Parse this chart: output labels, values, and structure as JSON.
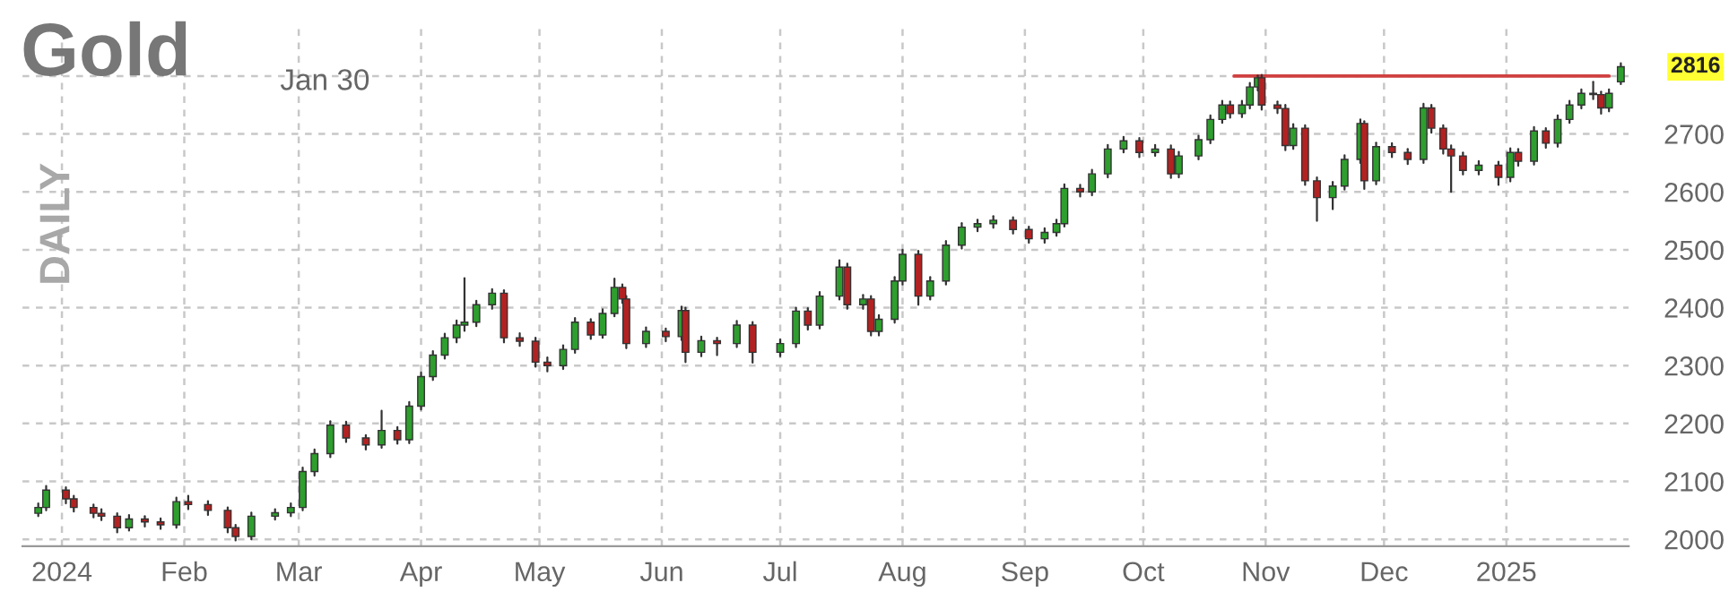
{
  "chart_data": {
    "type": "candlestick",
    "title": "Gold",
    "subtitle": "Jan 30",
    "annotations": [
      "DAILY",
      {
        "text": "2816",
        "x": "2025-01-30",
        "y": 2816
      }
    ],
    "x": [
      "2023-12-26",
      "2023-12-28",
      "2024-01-02",
      "2024-01-04",
      "2024-01-09",
      "2024-01-11",
      "2024-01-15",
      "2024-01-18",
      "2024-01-22",
      "2024-01-26",
      "2024-01-30",
      "2024-02-02",
      "2024-02-07",
      "2024-02-12",
      "2024-02-14",
      "2024-02-18",
      "2024-02-24",
      "2024-02-28",
      "2024-03-02",
      "2024-03-05",
      "2024-03-09",
      "2024-03-13",
      "2024-03-18",
      "2024-03-22",
      "2024-03-26",
      "2024-03-29",
      "2024-04-01",
      "2024-04-04",
      "2024-04-07",
      "2024-04-10",
      "2024-04-12",
      "2024-04-15",
      "2024-04-19",
      "2024-04-22",
      "2024-04-26",
      "2024-04-30",
      "2024-05-03",
      "2024-05-07",
      "2024-05-10",
      "2024-05-14",
      "2024-05-17",
      "2024-05-20",
      "2024-05-22",
      "2024-05-23",
      "2024-05-28",
      "2024-06-02",
      "2024-06-06",
      "2024-06-07",
      "2024-06-11",
      "2024-06-15",
      "2024-06-20",
      "2024-06-24",
      "2024-07-01",
      "2024-07-05",
      "2024-07-08",
      "2024-07-11",
      "2024-07-16",
      "2024-07-18",
      "2024-07-22",
      "2024-07-24",
      "2024-07-26",
      "2024-07-30",
      "2024-08-01",
      "2024-08-05",
      "2024-08-08",
      "2024-08-12",
      "2024-08-16",
      "2024-08-20",
      "2024-08-24",
      "2024-08-29",
      "2024-09-02",
      "2024-09-06",
      "2024-09-09",
      "2024-09-11",
      "2024-09-15",
      "2024-09-18",
      "2024-09-22",
      "2024-09-26",
      "2024-09-30",
      "2024-10-04",
      "2024-10-08",
      "2024-10-10",
      "2024-10-15",
      "2024-10-18",
      "2024-10-21",
      "2024-10-23",
      "2024-10-26",
      "2024-10-28",
      "2024-10-30",
      "2024-10-31",
      "2024-11-04",
      "2024-11-06",
      "2024-11-08",
      "2024-11-11",
      "2024-11-14",
      "2024-11-18",
      "2024-11-21",
      "2024-11-25",
      "2024-11-26",
      "2024-11-29",
      "2024-12-03",
      "2024-12-07",
      "2024-12-11",
      "2024-12-13",
      "2024-12-16",
      "2024-12-18",
      "2024-12-21",
      "2024-12-25",
      "2024-12-30",
      "2025-01-02",
      "2025-01-04",
      "2025-01-08",
      "2025-01-11",
      "2025-01-14",
      "2025-01-17",
      "2025-01-20",
      "2025-01-23",
      "2025-01-25",
      "2025-01-27",
      "2025-01-30"
    ],
    "ohlc": [
      [
        2045,
        2062,
        2040,
        2055
      ],
      [
        2055,
        2092,
        2050,
        2085
      ],
      [
        2085,
        2090,
        2062,
        2070
      ],
      [
        2070,
        2075,
        2048,
        2055
      ],
      [
        2055,
        2060,
        2038,
        2045
      ],
      [
        2045,
        2052,
        2033,
        2040
      ],
      [
        2040,
        2045,
        2012,
        2020
      ],
      [
        2020,
        2042,
        2015,
        2035
      ],
      [
        2035,
        2040,
        2022,
        2030
      ],
      [
        2030,
        2036,
        2018,
        2025
      ],
      [
        2025,
        2072,
        2020,
        2065
      ],
      [
        2065,
        2075,
        2052,
        2060
      ],
      [
        2060,
        2066,
        2042,
        2050
      ],
      [
        2050,
        2055,
        2012,
        2020
      ],
      [
        2020,
        2025,
        1998,
        2005
      ],
      [
        2005,
        2046,
        2000,
        2040
      ],
      [
        2040,
        2052,
        2034,
        2046
      ],
      [
        2046,
        2062,
        2040,
        2055
      ],
      [
        2055,
        2124,
        2050,
        2117
      ],
      [
        2117,
        2155,
        2110,
        2148
      ],
      [
        2148,
        2204,
        2142,
        2197
      ],
      [
        2197,
        2203,
        2168,
        2175
      ],
      [
        2175,
        2180,
        2155,
        2163
      ],
      [
        2163,
        2222,
        2158,
        2188
      ],
      [
        2188,
        2194,
        2165,
        2172
      ],
      [
        2172,
        2237,
        2166,
        2230
      ],
      [
        2230,
        2288,
        2224,
        2281
      ],
      [
        2281,
        2325,
        2275,
        2318
      ],
      [
        2318,
        2355,
        2312,
        2348
      ],
      [
        2348,
        2378,
        2340,
        2370
      ],
      [
        2370,
        2451,
        2360,
        2375
      ],
      [
        2375,
        2412,
        2368,
        2405
      ],
      [
        2405,
        2432,
        2398,
        2425
      ],
      [
        2425,
        2430,
        2340,
        2348
      ],
      [
        2348,
        2356,
        2334,
        2342
      ],
      [
        2342,
        2348,
        2298,
        2306
      ],
      [
        2306,
        2314,
        2290,
        2300
      ],
      [
        2300,
        2335,
        2294,
        2328
      ],
      [
        2328,
        2382,
        2322,
        2375
      ],
      [
        2375,
        2380,
        2346,
        2353
      ],
      [
        2353,
        2397,
        2348,
        2390
      ],
      [
        2390,
        2450,
        2385,
        2435
      ],
      [
        2435,
        2440,
        2408,
        2415
      ],
      [
        2415,
        2420,
        2330,
        2338
      ],
      [
        2338,
        2366,
        2332,
        2359
      ],
      [
        2359,
        2364,
        2342,
        2350
      ],
      [
        2350,
        2402,
        2344,
        2395
      ],
      [
        2395,
        2400,
        2306,
        2323
      ],
      [
        2323,
        2350,
        2316,
        2343
      ],
      [
        2343,
        2348,
        2318,
        2338
      ],
      [
        2338,
        2377,
        2332,
        2370
      ],
      [
        2370,
        2375,
        2305,
        2323
      ],
      [
        2323,
        2345,
        2316,
        2338
      ],
      [
        2338,
        2400,
        2332,
        2394
      ],
      [
        2394,
        2399,
        2362,
        2370
      ],
      [
        2370,
        2427,
        2364,
        2420
      ],
      [
        2420,
        2482,
        2414,
        2470
      ],
      [
        2470,
        2476,
        2398,
        2405
      ],
      [
        2405,
        2422,
        2398,
        2415
      ],
      [
        2415,
        2420,
        2352,
        2359
      ],
      [
        2359,
        2387,
        2352,
        2380
      ],
      [
        2380,
        2453,
        2374,
        2446
      ],
      [
        2446,
        2500,
        2440,
        2492
      ],
      [
        2492,
        2498,
        2405,
        2420
      ],
      [
        2420,
        2453,
        2414,
        2446
      ],
      [
        2446,
        2515,
        2440,
        2508
      ],
      [
        2508,
        2546,
        2502,
        2539
      ],
      [
        2539,
        2552,
        2532,
        2545
      ],
      [
        2545,
        2558,
        2538,
        2551
      ],
      [
        2551,
        2556,
        2528,
        2535
      ],
      [
        2535,
        2540,
        2512,
        2519
      ],
      [
        2519,
        2537,
        2512,
        2530
      ],
      [
        2530,
        2552,
        2524,
        2545
      ],
      [
        2545,
        2613,
        2540,
        2606
      ],
      [
        2606,
        2612,
        2592,
        2600
      ],
      [
        2600,
        2638,
        2594,
        2631
      ],
      [
        2631,
        2681,
        2625,
        2674
      ],
      [
        2674,
        2695,
        2668,
        2688
      ],
      [
        2688,
        2693,
        2660,
        2668
      ],
      [
        2668,
        2681,
        2662,
        2674
      ],
      [
        2674,
        2680,
        2624,
        2631
      ],
      [
        2631,
        2669,
        2625,
        2662
      ],
      [
        2662,
        2697,
        2656,
        2690
      ],
      [
        2690,
        2732,
        2684,
        2725
      ],
      [
        2725,
        2757,
        2719,
        2750
      ],
      [
        2750,
        2756,
        2728,
        2735
      ],
      [
        2735,
        2757,
        2729,
        2750
      ],
      [
        2750,
        2788,
        2744,
        2781
      ],
      [
        2781,
        2801,
        2775,
        2797
      ],
      [
        2797,
        2802,
        2742,
        2750
      ],
      [
        2750,
        2756,
        2736,
        2744
      ],
      [
        2744,
        2750,
        2672,
        2680
      ],
      [
        2680,
        2717,
        2674,
        2710
      ],
      [
        2710,
        2715,
        2612,
        2619
      ],
      [
        2619,
        2625,
        2550,
        2590
      ],
      [
        2590,
        2617,
        2570,
        2610
      ],
      [
        2610,
        2663,
        2604,
        2656
      ],
      [
        2656,
        2725,
        2650,
        2718
      ],
      [
        2718,
        2722,
        2605,
        2619
      ],
      [
        2619,
        2685,
        2613,
        2678
      ],
      [
        2678,
        2684,
        2660,
        2668
      ],
      [
        2668,
        2674,
        2648,
        2656
      ],
      [
        2656,
        2752,
        2650,
        2745
      ],
      [
        2745,
        2750,
        2702,
        2710
      ],
      [
        2710,
        2715,
        2666,
        2674
      ],
      [
        2674,
        2680,
        2600,
        2662
      ],
      [
        2662,
        2668,
        2630,
        2637
      ],
      [
        2637,
        2653,
        2630,
        2646
      ],
      [
        2646,
        2652,
        2612,
        2625
      ],
      [
        2625,
        2675,
        2618,
        2668
      ],
      [
        2668,
        2674,
        2645,
        2653
      ],
      [
        2653,
        2712,
        2647,
        2705
      ],
      [
        2705,
        2710,
        2676,
        2684
      ],
      [
        2684,
        2732,
        2678,
        2725
      ],
      [
        2725,
        2757,
        2719,
        2750
      ],
      [
        2750,
        2777,
        2744,
        2770
      ],
      [
        2770,
        2790,
        2760,
        2768
      ],
      [
        2768,
        2773,
        2735,
        2745
      ],
      [
        2745,
        2777,
        2739,
        2770
      ],
      [
        2790,
        2822,
        2786,
        2816
      ]
    ],
    "colors": [
      "#2e9e2e",
      "#2e9e2e",
      "#b22222",
      "#b22222",
      "#b22222",
      "#b22222",
      "#b22222",
      "#2e9e2e",
      "#b22222",
      "#b22222",
      "#2e9e2e",
      "#b22222",
      "#b22222",
      "#b22222",
      "#b22222",
      "#2e9e2e",
      "#2e9e2e",
      "#2e9e2e",
      "#2e9e2e",
      "#2e9e2e",
      "#2e9e2e",
      "#b22222",
      "#b22222",
      "#2e9e2e",
      "#b22222",
      "#2e9e2e",
      "#2e9e2e",
      "#2e9e2e",
      "#2e9e2e",
      "#2e9e2e",
      "#2e9e2e",
      "#2e9e2e",
      "#2e9e2e",
      "#b22222",
      "#b22222",
      "#b22222",
      "#b22222",
      "#2e9e2e",
      "#2e9e2e",
      "#b22222",
      "#2e9e2e",
      "#2e9e2e",
      "#b22222",
      "#b22222",
      "#2e9e2e",
      "#b22222",
      "#2e9e2e",
      "#b22222",
      "#2e9e2e",
      "#b22222",
      "#2e9e2e",
      "#b22222",
      "#2e9e2e",
      "#2e9e2e",
      "#b22222",
      "#2e9e2e",
      "#2e9e2e",
      "#b22222",
      "#2e9e2e",
      "#b22222",
      "#2e9e2e",
      "#2e9e2e",
      "#2e9e2e",
      "#b22222",
      "#2e9e2e",
      "#2e9e2e",
      "#2e9e2e",
      "#2e9e2e",
      "#2e9e2e",
      "#b22222",
      "#b22222",
      "#2e9e2e",
      "#2e9e2e",
      "#2e9e2e",
      "#b22222",
      "#2e9e2e",
      "#2e9e2e",
      "#2e9e2e",
      "#b22222",
      "#2e9e2e",
      "#b22222",
      "#2e9e2e",
      "#2e9e2e",
      "#2e9e2e",
      "#2e9e2e",
      "#b22222",
      "#2e9e2e",
      "#2e9e2e",
      "#2e9e2e",
      "#b22222",
      "#b22222",
      "#b22222",
      "#2e9e2e",
      "#b22222",
      "#b22222",
      "#2e9e2e",
      "#2e9e2e",
      "#2e9e2e",
      "#b22222",
      "#2e9e2e",
      "#b22222",
      "#b22222",
      "#2e9e2e",
      "#b22222",
      "#b22222",
      "#b22222",
      "#b22222",
      "#2e9e2e",
      "#b22222",
      "#2e9e2e",
      "#b22222",
      "#2e9e2e",
      "#b22222",
      "#2e9e2e",
      "#2e9e2e",
      "#2e9e2e",
      "#b22222",
      "#b22222",
      "#2e9e2e",
      "#2e9e2e"
    ],
    "series": [
      {
        "type": "line",
        "color": "#d04040",
        "x": [
          "2024-10-24",
          "2025-01-27"
        ],
        "values": [
          2800,
          2800
        ]
      }
    ],
    "xlim": [
      "2023-12-22",
      "2025-02-01"
    ],
    "xticks": [
      {
        "value": "2024-01-01",
        "label": "2024"
      },
      {
        "value": "2024-02-01",
        "label": "Feb"
      },
      {
        "value": "2024-03-01",
        "label": "Mar"
      },
      {
        "value": "2024-04-01",
        "label": "Apr"
      },
      {
        "value": "2024-05-01",
        "label": "May"
      },
      {
        "value": "2024-06-01",
        "label": "Jun"
      },
      {
        "value": "2024-07-01",
        "label": "Jul"
      },
      {
        "value": "2024-08-01",
        "label": "Aug"
      },
      {
        "value": "2024-09-01",
        "label": "Sep"
      },
      {
        "value": "2024-10-01",
        "label": "Oct"
      },
      {
        "value": "2024-11-01",
        "label": "Nov"
      },
      {
        "value": "2024-12-01",
        "label": "Dec"
      },
      {
        "value": "2025-01-01",
        "label": "2025"
      }
    ],
    "ylim": [
      1988,
      2885
    ],
    "yticks": [
      2000,
      2100,
      2200,
      2300,
      2400,
      2500,
      2600,
      2700,
      {
        "value": 2800,
        "label": null
      }
    ],
    "grid": true
  }
}
